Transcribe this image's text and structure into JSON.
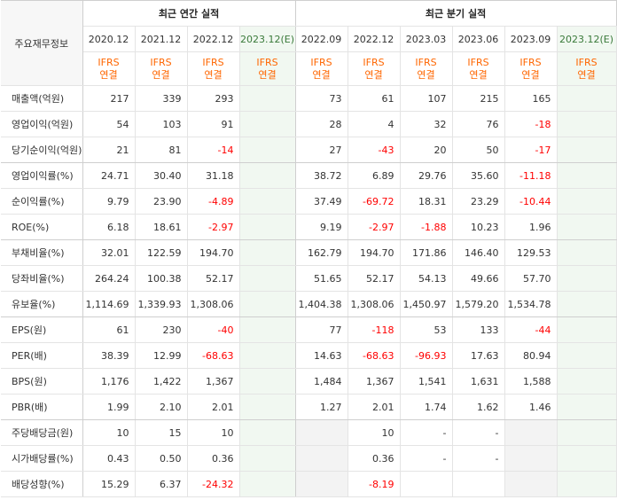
{
  "header": {
    "row_label": "주요재무정보",
    "annual_title": "최근 연간 실적",
    "quarterly_title": "최근 분기 실적"
  },
  "periods": [
    {
      "label": "2020.12",
      "group": "annual",
      "estimate": false
    },
    {
      "label": "2021.12",
      "group": "annual",
      "estimate": false
    },
    {
      "label": "2022.12",
      "group": "annual",
      "estimate": false
    },
    {
      "label": "2023.12(E)",
      "group": "annual",
      "estimate": true
    },
    {
      "label": "2022.09",
      "group": "quarter",
      "estimate": false
    },
    {
      "label": "2022.12",
      "group": "quarter",
      "estimate": false
    },
    {
      "label": "2023.03",
      "group": "quarter",
      "estimate": false
    },
    {
      "label": "2023.06",
      "group": "quarter",
      "estimate": false
    },
    {
      "label": "2023.09",
      "group": "quarter",
      "estimate": false
    },
    {
      "label": "2023.12(E)",
      "group": "quarter",
      "estimate": true
    }
  ],
  "basis": {
    "line1": "IFRS",
    "line2": "연결"
  },
  "rows": [
    {
      "label": "매출액(억원)",
      "values": [
        "217",
        "339",
        "293",
        "",
        "73",
        "61",
        "107",
        "215",
        "165",
        ""
      ]
    },
    {
      "label": "영업이익(억원)",
      "values": [
        "54",
        "103",
        "91",
        "",
        "28",
        "4",
        "32",
        "76",
        "-18",
        ""
      ]
    },
    {
      "label": "당기순이익(억원)",
      "values": [
        "21",
        "81",
        "-14",
        "",
        "27",
        "-43",
        "20",
        "50",
        "-17",
        ""
      ],
      "group_end": true
    },
    {
      "label": "영업이익률(%)",
      "values": [
        "24.71",
        "30.40",
        "31.18",
        "",
        "38.72",
        "6.89",
        "29.76",
        "35.60",
        "-11.18",
        ""
      ]
    },
    {
      "label": "순이익률(%)",
      "values": [
        "9.79",
        "23.90",
        "-4.89",
        "",
        "37.49",
        "-69.72",
        "18.31",
        "23.29",
        "-10.44",
        ""
      ]
    },
    {
      "label": "ROE(%)",
      "values": [
        "6.18",
        "18.61",
        "-2.97",
        "",
        "9.19",
        "-2.97",
        "-1.88",
        "10.23",
        "1.96",
        ""
      ],
      "group_end": true
    },
    {
      "label": "부채비율(%)",
      "values": [
        "32.01",
        "122.59",
        "194.70",
        "",
        "162.79",
        "194.70",
        "171.86",
        "146.40",
        "129.53",
        ""
      ]
    },
    {
      "label": "당좌비율(%)",
      "values": [
        "264.24",
        "100.38",
        "52.17",
        "",
        "51.65",
        "52.17",
        "54.13",
        "49.66",
        "57.70",
        ""
      ]
    },
    {
      "label": "유보율(%)",
      "values": [
        "1,114.69",
        "1,339.93",
        "1,308.06",
        "",
        "1,404.38",
        "1,308.06",
        "1,450.97",
        "1,579.20",
        "1,534.78",
        ""
      ],
      "group_end": true
    },
    {
      "label": "EPS(원)",
      "values": [
        "61",
        "230",
        "-40",
        "",
        "77",
        "-118",
        "53",
        "133",
        "-44",
        ""
      ]
    },
    {
      "label": "PER(배)",
      "values": [
        "38.39",
        "12.99",
        "-68.63",
        "",
        "14.63",
        "-68.63",
        "-96.93",
        "17.63",
        "80.94",
        ""
      ]
    },
    {
      "label": "BPS(원)",
      "values": [
        "1,176",
        "1,422",
        "1,367",
        "",
        "1,484",
        "1,367",
        "1,541",
        "1,631",
        "1,588",
        ""
      ]
    },
    {
      "label": "PBR(배)",
      "values": [
        "1.99",
        "2.10",
        "2.01",
        "",
        "1.27",
        "2.01",
        "1.74",
        "1.62",
        "1.46",
        ""
      ],
      "group_end": true
    },
    {
      "label": "주당배당금(원)",
      "values": [
        "10",
        "15",
        "10",
        "",
        "",
        "10",
        "-",
        "-",
        "",
        ""
      ],
      "blank": [
        4,
        8
      ]
    },
    {
      "label": "시가배당률(%)",
      "values": [
        "0.43",
        "0.50",
        "0.36",
        "",
        "",
        "0.36",
        "-",
        "-",
        "",
        ""
      ],
      "blank": [
        4,
        8
      ]
    },
    {
      "label": "배당성향(%)",
      "values": [
        "15.29",
        "6.37",
        "-24.32",
        "",
        "",
        "-8.19",
        "",
        "",
        "",
        ""
      ],
      "blank": [
        4,
        8
      ]
    }
  ],
  "colors": {
    "negative": "#ff0000",
    "basis": "#ff6600",
    "estimate_bg": "#f1f8f1",
    "blank_bg": "#f3f3f3"
  }
}
